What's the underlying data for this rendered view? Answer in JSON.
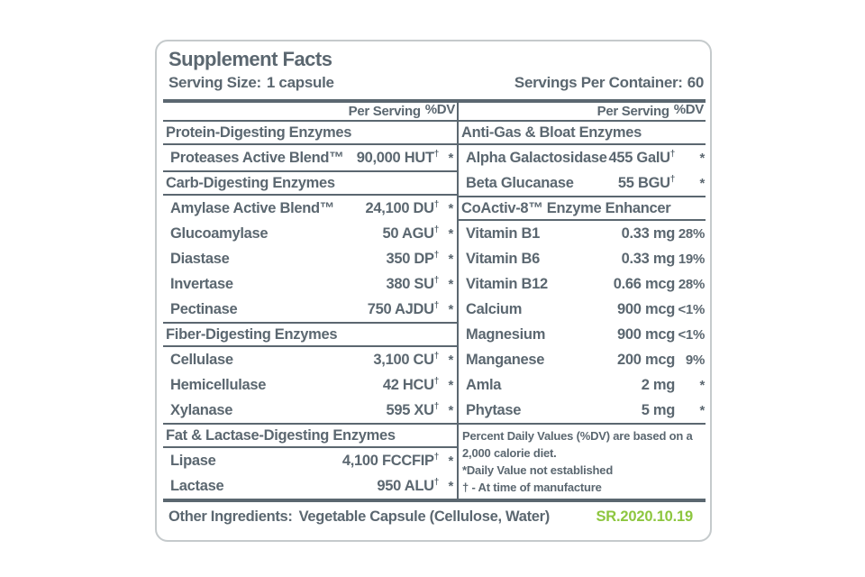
{
  "title": "Supplement Facts",
  "serving": {
    "size_label": "Serving Size:",
    "size_value": "1 capsule",
    "container_label": "Servings Per Container:",
    "container_value": "60"
  },
  "column_header": {
    "per_serving": "Per Serving",
    "dv": "%DV"
  },
  "left_column": {
    "sections": [
      {
        "header": "Protein-Digesting Enzymes",
        "rows": [
          {
            "name": "Proteases Active Blend™",
            "amount": "90,000 HUT",
            "sup": "†",
            "dv": "*"
          }
        ]
      },
      {
        "header": "Carb-Digesting Enzymes",
        "rows": [
          {
            "name": "Amylase Active Blend™",
            "amount": "24,100 DU",
            "sup": "†",
            "dv": "*"
          },
          {
            "name": "Glucoamylase",
            "amount": "50 AGU",
            "sup": "†",
            "dv": "*"
          },
          {
            "name": "Diastase",
            "amount": "350 DP",
            "sup": "†",
            "dv": "*"
          },
          {
            "name": "Invertase",
            "amount": "380 SU",
            "sup": "†",
            "dv": "*"
          },
          {
            "name": "Pectinase",
            "amount": "750 AJDU",
            "sup": "†",
            "dv": "*"
          }
        ]
      },
      {
        "header": "Fiber-Digesting Enzymes",
        "rows": [
          {
            "name": "Cellulase",
            "amount": "3,100 CU",
            "sup": "†",
            "dv": "*"
          },
          {
            "name": "Hemicellulase",
            "amount": "42 HCU",
            "sup": "†",
            "dv": "*"
          },
          {
            "name": "Xylanase",
            "amount": "595 XU",
            "sup": "†",
            "dv": "*"
          }
        ]
      },
      {
        "header": "Fat & Lactase-Digesting Enzymes",
        "rows": [
          {
            "name": "Lipase",
            "amount": "4,100 FCCFIP",
            "sup": "†",
            "dv": "*"
          },
          {
            "name": "Lactase",
            "amount": "950 ALU",
            "sup": "†",
            "dv": "*"
          }
        ]
      }
    ]
  },
  "right_column": {
    "sections": [
      {
        "header": "Anti-Gas & Bloat Enzymes",
        "rows": [
          {
            "name": "Alpha Galactosidase",
            "amount": "455 GalU",
            "sup": "†",
            "dv": "*"
          },
          {
            "name": "Beta Glucanase",
            "amount": "55 BGU",
            "sup": "†",
            "dv": "*"
          }
        ]
      },
      {
        "header": "CoActiv-8™ Enzyme Enhancer",
        "rows": [
          {
            "name": "Vitamin B1",
            "amount": "0.33 mg",
            "sup": "",
            "dv": "28%"
          },
          {
            "name": "Vitamin B6",
            "amount": "0.33 mg",
            "sup": "",
            "dv": "19%"
          },
          {
            "name": "Vitamin B12",
            "amount": "0.66 mcg",
            "sup": "",
            "dv": "28%"
          },
          {
            "name": "Calcium",
            "amount": "900 mcg",
            "sup": "",
            "dv": "<1%"
          },
          {
            "name": "Magnesium",
            "amount": "900 mcg",
            "sup": "",
            "dv": "<1%"
          },
          {
            "name": "Manganese",
            "amount": "200 mcg",
            "sup": "",
            "dv": "9%"
          },
          {
            "name": "Amla",
            "amount": "2 mg",
            "sup": "",
            "dv": "*"
          },
          {
            "name": "Phytase",
            "amount": "5 mg",
            "sup": "",
            "dv": "*"
          }
        ]
      }
    ],
    "footnotes": [
      "Percent Daily Values (%DV) are based on a 2,000 calorie diet.",
      "*Daily Value not established",
      "† - At time of manufacture"
    ]
  },
  "other_ingredients": {
    "label": "Other Ingredients:",
    "value": "Vegetable Capsule (Cellulose, Water)"
  },
  "sr_code": "SR.2020.10.19",
  "colors": {
    "text_slate": "#5b6770",
    "accent_green": "#8dc63f",
    "panel_border": "#c5cacc"
  }
}
